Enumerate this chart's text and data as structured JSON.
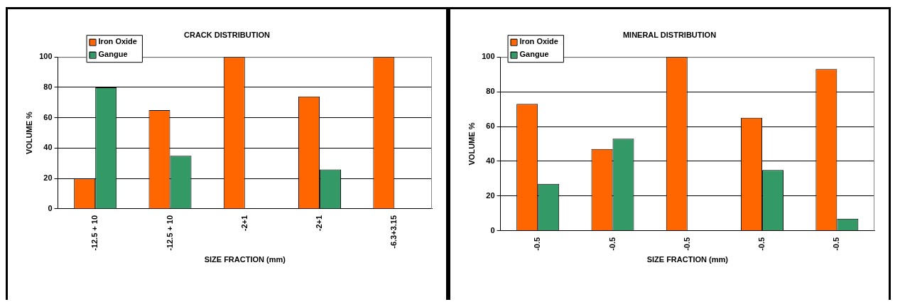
{
  "chart_data": [
    {
      "type": "bar",
      "title": "CRACK DISTRIBUTION",
      "xlabel": "SIZE FRACTION (mm)",
      "ylabel": "VOLUME %",
      "categories": [
        "-12.5 + 10",
        "-12.5 + 10",
        "-2+1",
        "-2+1",
        "-6.3+3.15"
      ],
      "series": [
        {
          "name": "Iron Oxide",
          "color": "#ff6600",
          "values": [
            20,
            65,
            100,
            74,
            100
          ]
        },
        {
          "name": "Gangue",
          "color": "#339966",
          "values": [
            80,
            35,
            0,
            26,
            0
          ]
        }
      ],
      "ylim": [
        0,
        100
      ],
      "yticks": [
        0,
        20,
        40,
        60,
        80,
        100
      ],
      "grid": "y",
      "legend": "top left"
    },
    {
      "type": "bar",
      "title": "MINERAL DISTRIBUTION",
      "xlabel": "SIZE FRACTION (mm)",
      "ylabel": "VOLUME %",
      "categories": [
        "-0.5",
        "-0.5",
        "-0.5",
        "-0.5",
        "-0.5"
      ],
      "series": [
        {
          "name": "Iron Oxide",
          "color": "#ff6600",
          "values": [
            73,
            47,
            100,
            65,
            93
          ]
        },
        {
          "name": "Gangue",
          "color": "#339966",
          "values": [
            27,
            53,
            0,
            35,
            7
          ]
        }
      ],
      "ylim": [
        0,
        100
      ],
      "yticks": [
        0,
        20,
        40,
        60,
        80,
        100
      ],
      "grid": "y",
      "legend": "top left"
    }
  ]
}
